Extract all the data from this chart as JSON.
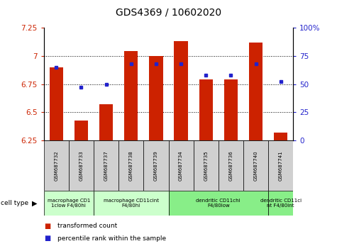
{
  "title": "GDS4369 / 10602020",
  "samples": [
    "GSM687732",
    "GSM687733",
    "GSM687737",
    "GSM687738",
    "GSM687739",
    "GSM687734",
    "GSM687735",
    "GSM687736",
    "GSM687740",
    "GSM687741"
  ],
  "bar_values": [
    6.9,
    6.43,
    6.57,
    7.04,
    7.0,
    7.13,
    6.79,
    6.79,
    7.12,
    6.32
  ],
  "dot_values": [
    65,
    47,
    50,
    68,
    68,
    68,
    58,
    58,
    68,
    52
  ],
  "ylim_left": [
    6.25,
    7.25
  ],
  "ylim_right": [
    0,
    100
  ],
  "yticks_left": [
    6.25,
    6.5,
    6.75,
    7.0,
    7.25
  ],
  "yticks_right": [
    0,
    25,
    50,
    75,
    100
  ],
  "ytick_labels_left": [
    "6.25",
    "6.5",
    "6.75",
    "7",
    "7.25"
  ],
  "ytick_labels_right": [
    "0",
    "25",
    "50",
    "75",
    "100%"
  ],
  "bar_color": "#CC2200",
  "dot_color": "#2222CC",
  "legend_red_label": "transformed count",
  "legend_blue_label": "percentile rank within the sample",
  "cell_type_label": "cell type",
  "tick_color_left": "#CC2200",
  "tick_color_right": "#2222CC",
  "bar_bottom": 6.25,
  "group_configs": [
    {
      "label": "macrophage CD1\n1clow F4/80hi",
      "cols": [
        0,
        1
      ],
      "color": "#ccffcc"
    },
    {
      "label": "macrophage CD11cint\nF4/80hi",
      "cols": [
        2,
        3,
        4
      ],
      "color": "#ccffcc"
    },
    {
      "label": "dendritic CD11chi\nF4/80low",
      "cols": [
        5,
        6,
        7,
        8
      ],
      "color": "#88ee88"
    },
    {
      "label": "dendritic CD11ci\nnt F4/80int",
      "cols": [
        9
      ],
      "color": "#88ee88"
    }
  ],
  "grid_yticks": [
    6.5,
    6.75,
    7.0
  ]
}
